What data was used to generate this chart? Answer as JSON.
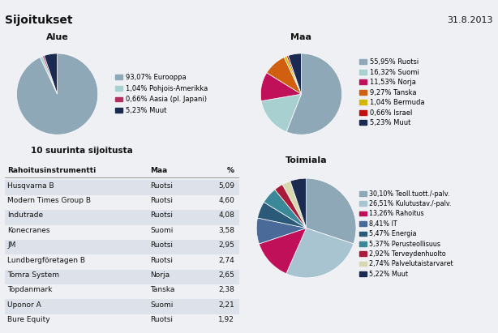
{
  "title_left": "Sijoitukset",
  "title_right": "31.8.2013",
  "alue_title": "Alue",
  "alue_values": [
    93.07,
    1.04,
    0.66,
    5.23
  ],
  "alue_labels": [
    "93,07% Eurooppa",
    "1,04% Pohjois-Amerikka",
    "0,66% Aasia (pl. Japani)",
    "5,23% Muut"
  ],
  "alue_colors": [
    "#8fa8b8",
    "#a8d0d0",
    "#b03060",
    "#1a2a50"
  ],
  "alue_startangle": 90,
  "maa_title": "Maa",
  "maa_values": [
    55.95,
    16.32,
    11.53,
    9.27,
    1.04,
    0.66,
    5.23
  ],
  "maa_labels": [
    "55,95% Ruotsi",
    "16,32% Suomi",
    "11,53% Norja",
    "9,27% Tanska",
    "1,04% Bermuda",
    "0,66% Israel",
    "5,23% Muut"
  ],
  "maa_colors": [
    "#8fa8b8",
    "#a8d0d0",
    "#c0105a",
    "#d06010",
    "#d4b800",
    "#c01010",
    "#1a2a50"
  ],
  "maa_startangle": 90,
  "toimiala_title": "Toimiala",
  "toimiala_values": [
    30.1,
    26.51,
    13.26,
    8.41,
    5.47,
    5.37,
    2.92,
    2.74,
    5.22
  ],
  "toimiala_labels": [
    "30,10% Teoll.tuott./-palv.",
    "26,51% Kulutustav./-palv.",
    "13,26% Rahoitus",
    "8,41% IT",
    "5,47% Energia",
    "5,37% Perusteollisuus",
    "2,92% Terveydenhuolto",
    "2,74% Palvelutaistarvaret",
    "5,22% Muut"
  ],
  "toimiala_colors": [
    "#8fa8b8",
    "#a8c4d0",
    "#c0105a",
    "#4a6a99",
    "#2a5a78",
    "#3a8898",
    "#aa1a3a",
    "#d8d8b0",
    "#1a2a50"
  ],
  "toimiala_startangle": 90,
  "table_title": "10 suurinta sijoitusta",
  "table_headers": [
    "Rahoitusinstrumentti",
    "Maa",
    "%"
  ],
  "table_rows": [
    [
      "Husqvarna B",
      "Ruotsi",
      "5,09"
    ],
    [
      "Modern Times Group B",
      "Ruotsi",
      "4,60"
    ],
    [
      "Indutrade",
      "Ruotsi",
      "4,08"
    ],
    [
      "Konecranes",
      "Suomi",
      "3,58"
    ],
    [
      "JM",
      "Ruotsi",
      "2,95"
    ],
    [
      "Lundbergföretagen B",
      "Ruotsi",
      "2,74"
    ],
    [
      "Tomra System",
      "Norja",
      "2,65"
    ],
    [
      "Topdanmark",
      "Tanska",
      "2,38"
    ],
    [
      "Uponor A",
      "Suomi",
      "2,21"
    ],
    [
      "Bure Equity",
      "Ruotsi",
      "1,92"
    ]
  ],
  "bg_color": "#eef0f4",
  "header_bg": "#c8d0dc",
  "white_bg": "#ffffff"
}
